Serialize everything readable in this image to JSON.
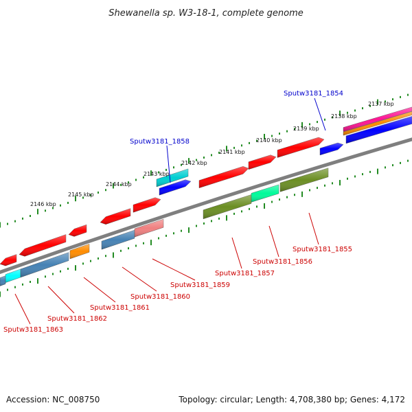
{
  "title": "Shewanella sp. W3-18-1, complete genome",
  "footer": {
    "accession": "Accession: NC_008750",
    "summary": "Topology: circular; Length: 4,708,380 bp; Genes: 4,172"
  },
  "colors": {
    "backbone": "#7f7f7f",
    "tick": "#228b22",
    "forward_label": "#0000cc",
    "reverse_label": "#cc0000",
    "gene_red": "#ff0000",
    "gene_olive": "#6b8e23",
    "gene_steelblue": "#4682b4",
    "gene_cyan": "#00ffff",
    "gene_blue": "#0000ff",
    "gene_teal": "#00ced1",
    "gene_orange": "#ff8c00",
    "gene_pink": "#f08080",
    "gene_spring": "#00fa9a",
    "gene_magenta": "#ff1493"
  },
  "scale_labels": [
    "2146 kbp",
    "2145 kbp",
    "2144 kbp",
    "2143 kbp",
    "2142 kbp",
    "2141 kbp",
    "2140 kbp",
    "2139 kbp",
    "2138 kbp",
    "2137 kbp"
  ],
  "forward_labels": [
    "Sputw3181_1858",
    "Sputw3181_1854"
  ],
  "reverse_labels": [
    "Sputw3181_1863",
    "Sputw3181_1862",
    "Sputw3181_1861",
    "Sputw3181_1860",
    "Sputw3181_1859",
    "Sputw3181_1857",
    "Sputw3181_1856",
    "Sputw3181_1855"
  ]
}
